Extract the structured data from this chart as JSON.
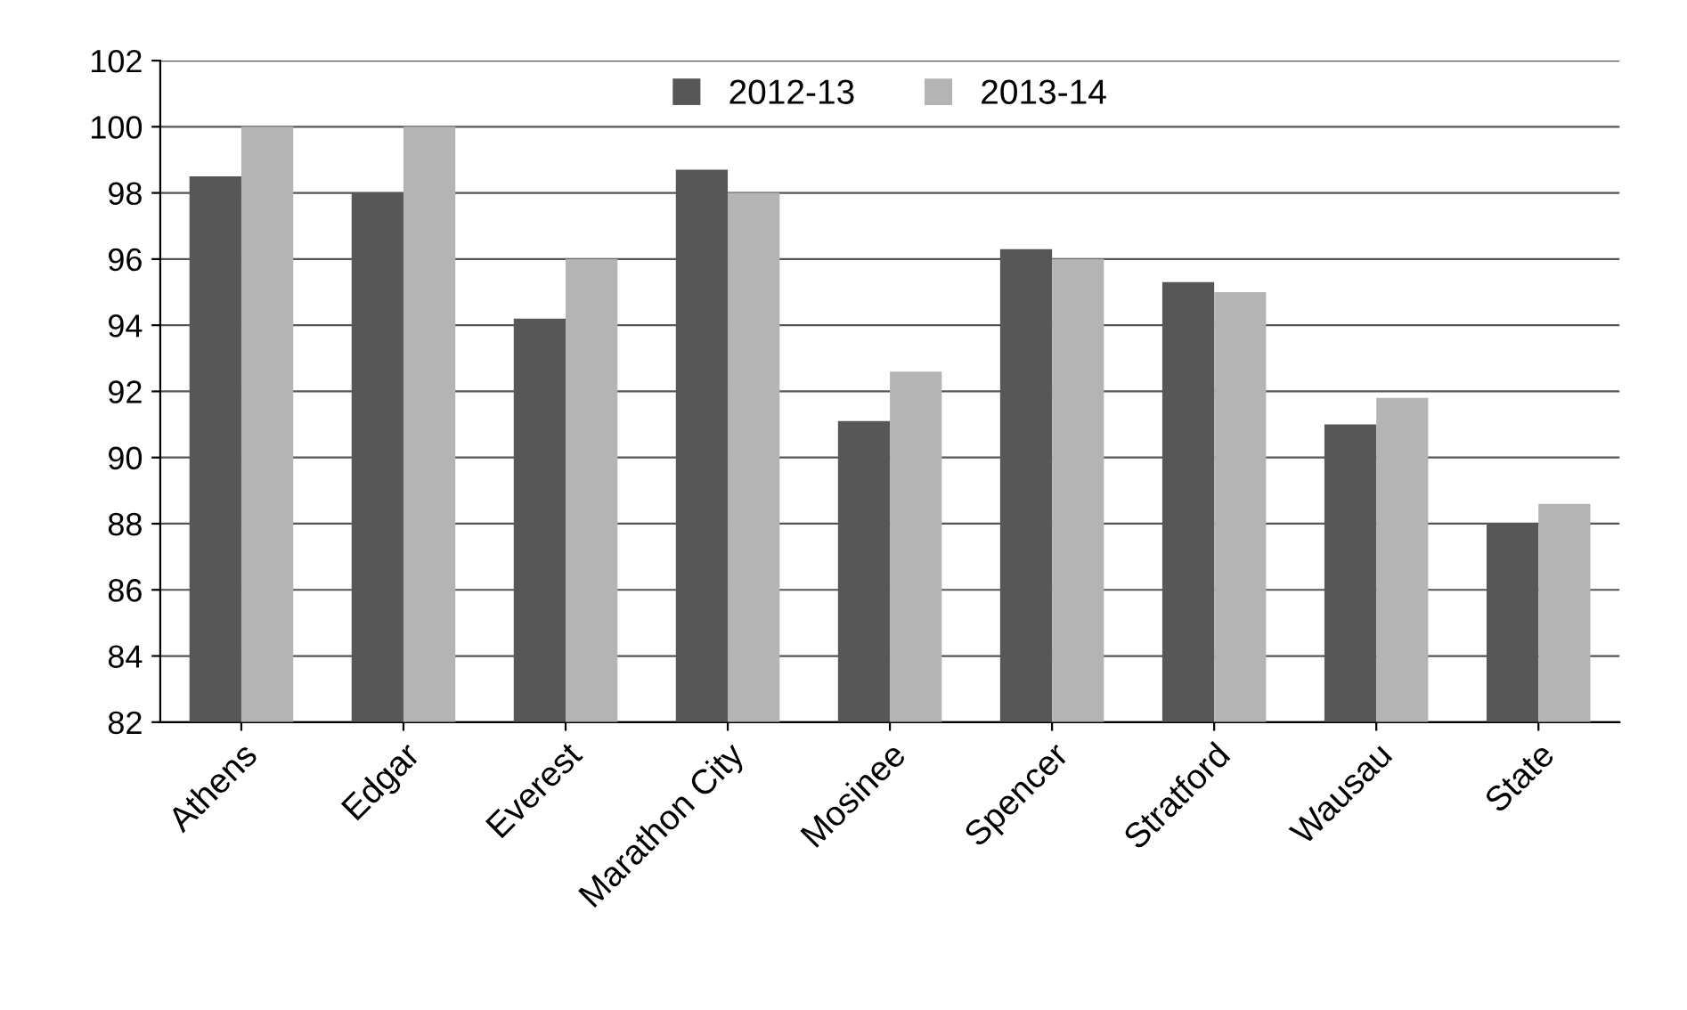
{
  "chart_data": {
    "type": "bar",
    "categories": [
      "Athens",
      "Edgar",
      "Everest",
      "Marathon City",
      "Mosinee",
      "Spencer",
      "Stratford",
      "Wausau",
      "State"
    ],
    "series": [
      {
        "name": "2012-13",
        "color": "#575757",
        "values": [
          98.5,
          98.0,
          94.2,
          98.7,
          91.1,
          96.3,
          95.3,
          91.0,
          88.0
        ]
      },
      {
        "name": "2013-14",
        "color": "#b4b4b4",
        "values": [
          100.0,
          100.0,
          96.0,
          98.0,
          92.6,
          96.0,
          95.0,
          91.8,
          88.6
        ]
      }
    ],
    "ylim": [
      82,
      102
    ],
    "yticks": [
      82,
      84,
      86,
      88,
      90,
      92,
      94,
      96,
      98,
      100,
      102
    ],
    "grid": "y",
    "legend": "top"
  }
}
